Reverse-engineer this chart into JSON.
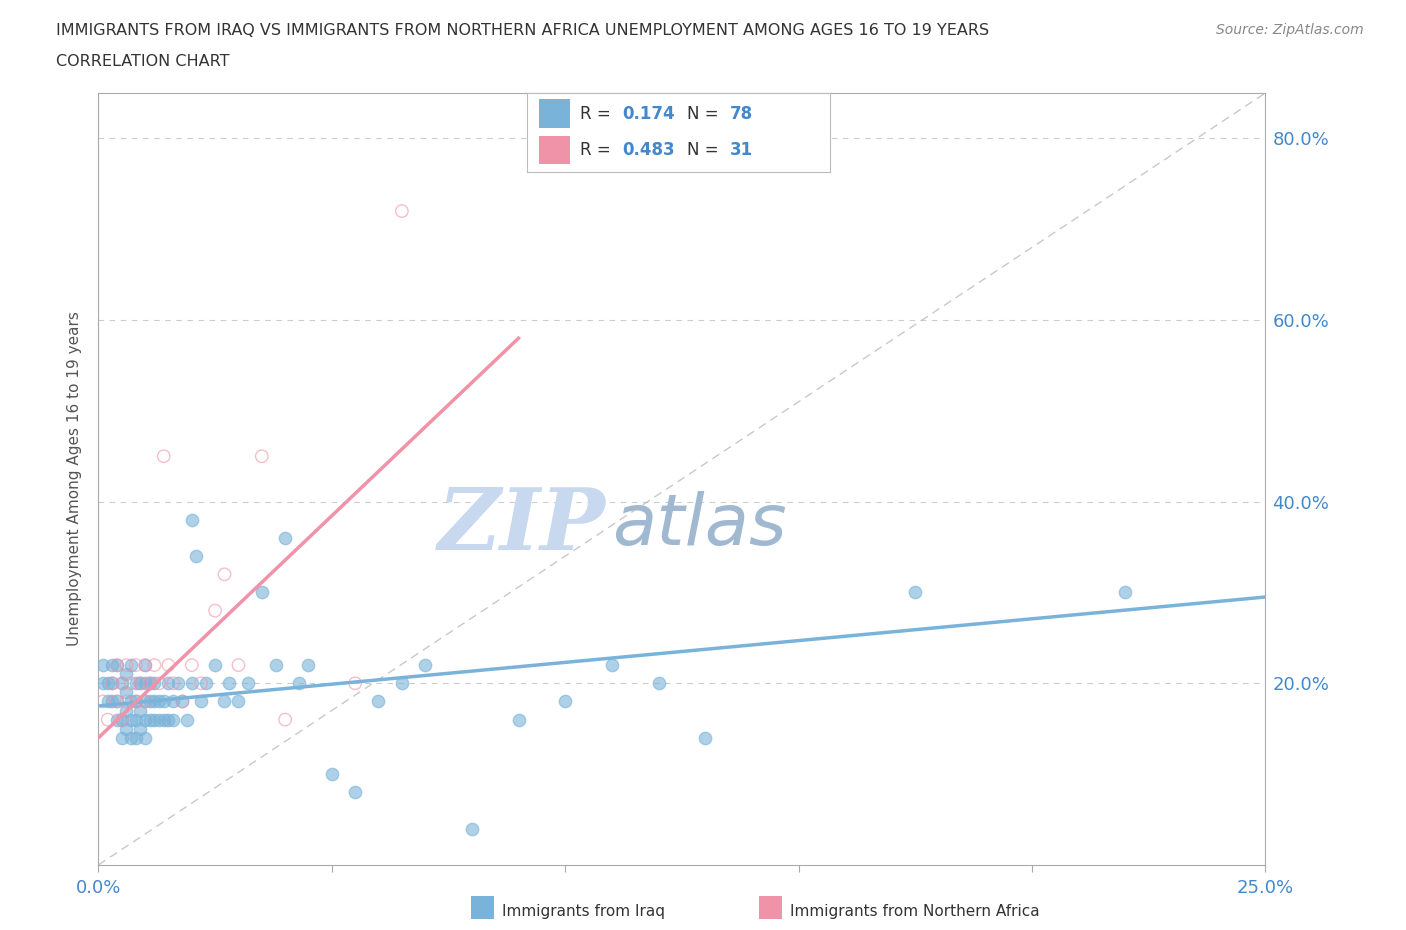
{
  "title_line1": "IMMIGRANTS FROM IRAQ VS IMMIGRANTS FROM NORTHERN AFRICA UNEMPLOYMENT AMONG AGES 16 TO 19 YEARS",
  "title_line2": "CORRELATION CHART",
  "source_text": "Source: ZipAtlas.com",
  "ylabel": "Unemployment Among Ages 16 to 19 years",
  "xlim": [
    0.0,
    0.25
  ],
  "ylim": [
    0.0,
    0.85
  ],
  "color_iraq": "#7ab3d9",
  "color_nafrica": "#f093a8",
  "legend_r_iraq": "0.174",
  "legend_n_iraq": "78",
  "legend_r_nafrica": "0.483",
  "legend_n_nafrica": "31",
  "watermark_zip": "ZIP",
  "watermark_atlas": "atlas",
  "watermark_color_zip": "#c8d8ee",
  "watermark_color_atlas": "#a0b8d0",
  "grid_color": "#cccccc",
  "axis_color": "#aaaaaa",
  "tick_color": "#4488cc",
  "iraq_x": [
    0.001,
    0.001,
    0.002,
    0.002,
    0.003,
    0.003,
    0.003,
    0.004,
    0.004,
    0.004,
    0.005,
    0.005,
    0.005,
    0.006,
    0.006,
    0.006,
    0.006,
    0.007,
    0.007,
    0.007,
    0.007,
    0.008,
    0.008,
    0.008,
    0.008,
    0.009,
    0.009,
    0.009,
    0.01,
    0.01,
    0.01,
    0.01,
    0.01,
    0.011,
    0.011,
    0.011,
    0.012,
    0.012,
    0.012,
    0.013,
    0.013,
    0.014,
    0.014,
    0.015,
    0.015,
    0.016,
    0.016,
    0.017,
    0.018,
    0.019,
    0.02,
    0.02,
    0.021,
    0.022,
    0.023,
    0.025,
    0.027,
    0.028,
    0.03,
    0.032,
    0.035,
    0.038,
    0.04,
    0.043,
    0.045,
    0.05,
    0.055,
    0.06,
    0.065,
    0.07,
    0.08,
    0.09,
    0.1,
    0.11,
    0.12,
    0.13,
    0.175,
    0.22
  ],
  "iraq_y": [
    0.2,
    0.22,
    0.18,
    0.2,
    0.18,
    0.2,
    0.22,
    0.16,
    0.18,
    0.22,
    0.14,
    0.16,
    0.2,
    0.15,
    0.17,
    0.19,
    0.21,
    0.14,
    0.16,
    0.18,
    0.22,
    0.14,
    0.16,
    0.18,
    0.2,
    0.15,
    0.17,
    0.2,
    0.14,
    0.16,
    0.18,
    0.2,
    0.22,
    0.16,
    0.18,
    0.2,
    0.16,
    0.18,
    0.2,
    0.16,
    0.18,
    0.16,
    0.18,
    0.16,
    0.2,
    0.16,
    0.18,
    0.2,
    0.18,
    0.16,
    0.38,
    0.2,
    0.34,
    0.18,
    0.2,
    0.22,
    0.18,
    0.2,
    0.18,
    0.2,
    0.3,
    0.22,
    0.36,
    0.2,
    0.22,
    0.1,
    0.08,
    0.18,
    0.2,
    0.22,
    0.04,
    0.16,
    0.18,
    0.22,
    0.2,
    0.14,
    0.3,
    0.3
  ],
  "nafrica_x": [
    0.001,
    0.002,
    0.003,
    0.004,
    0.004,
    0.005,
    0.005,
    0.006,
    0.006,
    0.007,
    0.008,
    0.008,
    0.009,
    0.01,
    0.01,
    0.011,
    0.012,
    0.013,
    0.014,
    0.015,
    0.016,
    0.018,
    0.02,
    0.022,
    0.025,
    0.027,
    0.03,
    0.035,
    0.04,
    0.055,
    0.065
  ],
  "nafrica_y": [
    0.18,
    0.16,
    0.2,
    0.18,
    0.22,
    0.16,
    0.2,
    0.18,
    0.22,
    0.2,
    0.18,
    0.22,
    0.2,
    0.18,
    0.22,
    0.2,
    0.22,
    0.2,
    0.45,
    0.22,
    0.2,
    0.18,
    0.22,
    0.2,
    0.28,
    0.32,
    0.22,
    0.45,
    0.16,
    0.2,
    0.72
  ],
  "iraq_trend_x0": 0.0,
  "iraq_trend_y0": 0.175,
  "iraq_trend_x1": 0.25,
  "iraq_trend_y1": 0.295,
  "nafrica_trend_x0": 0.0,
  "nafrica_trend_y0": 0.14,
  "nafrica_trend_x1": 0.09,
  "nafrica_trend_y1": 0.58
}
